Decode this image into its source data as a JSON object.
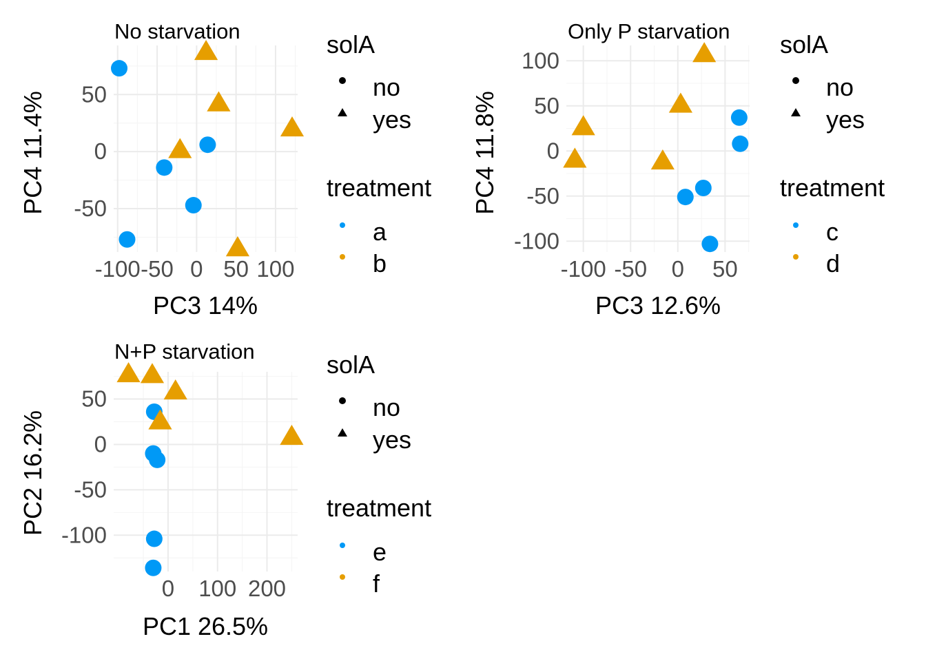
{
  "chart_data": [
    {
      "type": "scatter",
      "title": "No starvation",
      "xlabel": "PC3 14%",
      "ylabel": "PC4 11.4%",
      "xlim": [
        -105,
        128
      ],
      "ylim": [
        -88,
        93
      ],
      "xticks": [
        -100,
        -50,
        0,
        50,
        100
      ],
      "yticks": [
        -50,
        0,
        50
      ],
      "legend_shape": {
        "title": "solA",
        "entries": [
          "no",
          "yes"
        ]
      },
      "legend_color": {
        "title": "treatment",
        "entries": [
          "a",
          "b"
        ],
        "colors": [
          "#0099f6",
          "#e69e00"
        ]
      },
      "points": [
        {
          "x": -98,
          "y": 73,
          "treatment": "a",
          "solA": "no"
        },
        {
          "x": -41,
          "y": -14,
          "treatment": "a",
          "solA": "no"
        },
        {
          "x": 14,
          "y": 6,
          "treatment": "a",
          "solA": "no"
        },
        {
          "x": -4,
          "y": -47,
          "treatment": "a",
          "solA": "no"
        },
        {
          "x": -88,
          "y": -77,
          "treatment": "a",
          "solA": "no"
        },
        {
          "x": 12,
          "y": 87,
          "treatment": "b",
          "solA": "yes"
        },
        {
          "x": 28,
          "y": 42,
          "treatment": "b",
          "solA": "yes"
        },
        {
          "x": -21,
          "y": 1,
          "treatment": "b",
          "solA": "yes"
        },
        {
          "x": 121,
          "y": 20,
          "treatment": "b",
          "solA": "yes"
        },
        {
          "x": 52,
          "y": -85,
          "treatment": "b",
          "solA": "yes"
        }
      ]
    },
    {
      "type": "scatter",
      "title": "Only P starvation",
      "xlabel": "PC3 12.6%",
      "ylabel": "PC4 11.8%",
      "xlim": [
        -118,
        76
      ],
      "ylim": [
        -112,
        117
      ],
      "xticks": [
        -100,
        -50,
        0,
        50
      ],
      "yticks": [
        -100,
        -50,
        0,
        50,
        100
      ],
      "legend_shape": {
        "title": "solA",
        "entries": [
          "no",
          "yes"
        ]
      },
      "legend_color": {
        "title": "treatment",
        "entries": [
          "c",
          "d"
        ],
        "colors": [
          "#0099f6",
          "#e69e00"
        ]
      },
      "points": [
        {
          "x": 65,
          "y": 37,
          "treatment": "c",
          "solA": "no"
        },
        {
          "x": 66,
          "y": 8,
          "treatment": "c",
          "solA": "no"
        },
        {
          "x": 27,
          "y": -41,
          "treatment": "c",
          "solA": "no"
        },
        {
          "x": 8,
          "y": -51,
          "treatment": "c",
          "solA": "no"
        },
        {
          "x": 34,
          "y": -103,
          "treatment": "c",
          "solA": "no"
        },
        {
          "x": 28,
          "y": 107,
          "treatment": "d",
          "solA": "yes"
        },
        {
          "x": 3,
          "y": 51,
          "treatment": "d",
          "solA": "yes"
        },
        {
          "x": -100,
          "y": 26,
          "treatment": "d",
          "solA": "yes"
        },
        {
          "x": -109,
          "y": -10,
          "treatment": "d",
          "solA": "yes"
        },
        {
          "x": -16,
          "y": -12,
          "treatment": "d",
          "solA": "yes"
        }
      ]
    },
    {
      "type": "scatter",
      "title": "N+P starvation",
      "xlabel": "PC1 26.5%",
      "ylabel": "PC2 16.2%",
      "xlim": [
        -110,
        262
      ],
      "ylim": [
        -140,
        80
      ],
      "xticks": [
        0,
        100,
        200
      ],
      "yticks": [
        -100,
        -50,
        0,
        50
      ],
      "legend_shape": {
        "title": "solA",
        "entries": [
          "no",
          "yes"
        ]
      },
      "legend_color": {
        "title": "treatment",
        "entries": [
          "e",
          "f"
        ],
        "colors": [
          "#0099f6",
          "#e69e00"
        ]
      },
      "points": [
        {
          "x": -28,
          "y": 36,
          "treatment": "e",
          "solA": "no"
        },
        {
          "x": -30,
          "y": -10,
          "treatment": "e",
          "solA": "no"
        },
        {
          "x": -22,
          "y": -17,
          "treatment": "e",
          "solA": "no"
        },
        {
          "x": -28,
          "y": -104,
          "treatment": "e",
          "solA": "no"
        },
        {
          "x": -30,
          "y": -136,
          "treatment": "e",
          "solA": "no"
        },
        {
          "x": -80,
          "y": 77,
          "treatment": "f",
          "solA": "yes"
        },
        {
          "x": -32,
          "y": 76,
          "treatment": "f",
          "solA": "yes"
        },
        {
          "x": 15,
          "y": 58,
          "treatment": "f",
          "solA": "yes"
        },
        {
          "x": -16,
          "y": 25,
          "treatment": "f",
          "solA": "yes"
        },
        {
          "x": 250,
          "y": 8,
          "treatment": "f",
          "solA": "yes"
        }
      ]
    }
  ]
}
